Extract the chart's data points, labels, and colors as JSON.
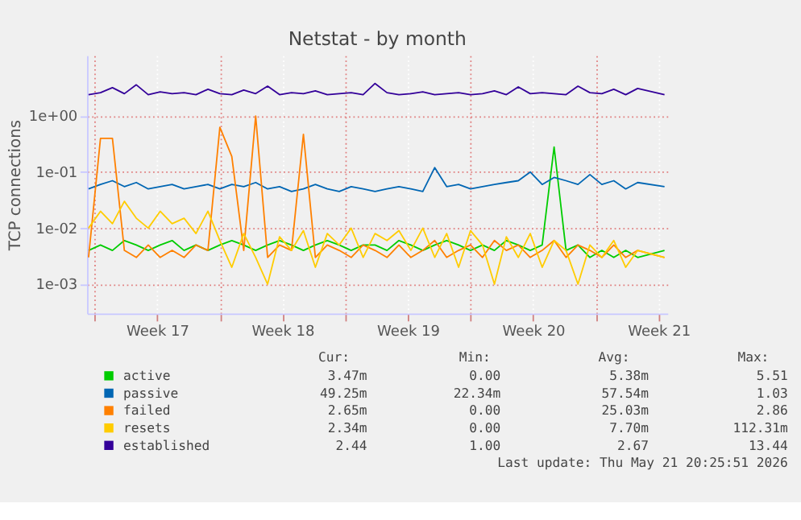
{
  "chart_data": {
    "type": "line",
    "title": "Netstat - by month",
    "ylabel": "TCP connections",
    "log": "y",
    "grid": true,
    "legend": "bottom",
    "marker": "none",
    "line_style": "solid",
    "xlim": [
      "2026-04-19T14:00",
      "2026-05-22T00:00"
    ],
    "xticks": [
      {
        "value": "2026-04-20",
        "label": null
      },
      {
        "value": "2026-04-23T12:00",
        "label": "Week 17"
      },
      {
        "value": "2026-04-27",
        "label": null
      },
      {
        "value": "2026-04-30T12:00",
        "label": "Week 18"
      },
      {
        "value": "2026-05-04",
        "label": null
      },
      {
        "value": "2026-05-07T12:00",
        "label": "Week 19"
      },
      {
        "value": "2026-05-11",
        "label": null
      },
      {
        "value": "2026-05-14T12:00",
        "label": "Week 20"
      },
      {
        "value": "2026-05-18",
        "label": null
      },
      {
        "value": "2026-05-21T12:00",
        "label": "Week 21"
      }
    ],
    "ylim": [
      0.0003,
      12
    ],
    "yticks": [
      {
        "value": 0.001,
        "label": "1e-03"
      },
      {
        "value": 0.01,
        "label": "1e-02"
      },
      {
        "value": 0.1,
        "label": "1e-01"
      },
      {
        "value": 1,
        "label": "1e+00"
      }
    ],
    "x": [
      "2026-04-19T16:00",
      "2026-04-20T08:00",
      "2026-04-21T00:00",
      "2026-04-21T16:00",
      "2026-04-22T08:00",
      "2026-04-23T00:00",
      "2026-04-23T16:00",
      "2026-04-24T08:00",
      "2026-04-25T00:00",
      "2026-04-25T16:00",
      "2026-04-26T08:00",
      "2026-04-27T00:00",
      "2026-04-27T16:00",
      "2026-04-28T08:00",
      "2026-04-29T00:00",
      "2026-04-29T16:00",
      "2026-04-30T08:00",
      "2026-05-01T00:00",
      "2026-05-01T16:00",
      "2026-05-02T08:00",
      "2026-05-03T00:00",
      "2026-05-03T16:00",
      "2026-05-04T08:00",
      "2026-05-05T00:00",
      "2026-05-05T16:00",
      "2026-05-06T08:00",
      "2026-05-07T00:00",
      "2026-05-07T16:00",
      "2026-05-08T08:00",
      "2026-05-09T00:00",
      "2026-05-09T16:00",
      "2026-05-10T08:00",
      "2026-05-11T00:00",
      "2026-05-11T16:00",
      "2026-05-12T08:00",
      "2026-05-13T00:00",
      "2026-05-13T16:00",
      "2026-05-14T08:00",
      "2026-05-15T00:00",
      "2026-05-15T16:00",
      "2026-05-16T08:00",
      "2026-05-17T00:00",
      "2026-05-17T16:00",
      "2026-05-18T08:00",
      "2026-05-19T00:00",
      "2026-05-19T16:00",
      "2026-05-20T08:00",
      "2026-05-21T20:00"
    ],
    "series": [
      {
        "name": "active",
        "color": "#00cc00",
        "values": [
          0.004,
          0.005,
          0.004,
          0.006,
          0.005,
          0.004,
          0.005,
          0.006,
          0.004,
          0.005,
          0.004,
          0.005,
          0.006,
          0.005,
          0.004,
          0.005,
          0.006,
          0.005,
          0.004,
          0.005,
          0.006,
          0.005,
          0.004,
          0.005,
          0.005,
          0.004,
          0.006,
          0.005,
          0.004,
          0.005,
          0.006,
          0.005,
          0.004,
          0.005,
          0.004,
          0.006,
          0.005,
          0.004,
          0.005,
          0.28,
          0.004,
          0.005,
          0.003,
          0.004,
          0.003,
          0.004,
          0.003,
          0.004
        ]
      },
      {
        "name": "passive",
        "color": "#0066b3",
        "values": [
          0.05,
          0.06,
          0.07,
          0.055,
          0.065,
          0.05,
          0.055,
          0.06,
          0.05,
          0.055,
          0.06,
          0.05,
          0.06,
          0.055,
          0.065,
          0.05,
          0.055,
          0.045,
          0.05,
          0.06,
          0.05,
          0.045,
          0.055,
          0.05,
          0.045,
          0.05,
          0.055,
          0.05,
          0.045,
          0.12,
          0.055,
          0.06,
          0.05,
          0.055,
          0.06,
          0.065,
          0.07,
          0.1,
          0.06,
          0.08,
          0.07,
          0.06,
          0.09,
          0.06,
          0.07,
          0.05,
          0.065,
          0.055
        ]
      },
      {
        "name": "failed",
        "color": "#ff8000",
        "values": [
          0.003,
          0.4,
          0.4,
          0.004,
          0.003,
          0.005,
          0.003,
          0.004,
          0.003,
          0.005,
          0.004,
          0.63,
          0.19,
          0.004,
          1.0,
          0.003,
          0.005,
          0.004,
          0.47,
          0.003,
          0.005,
          0.004,
          0.003,
          0.005,
          0.004,
          0.003,
          0.005,
          0.003,
          0.004,
          0.006,
          0.003,
          0.004,
          0.005,
          0.003,
          0.006,
          0.004,
          0.005,
          0.003,
          0.004,
          0.006,
          0.003,
          0.005,
          0.004,
          0.003,
          0.005,
          0.003,
          0.004,
          0.003
        ]
      },
      {
        "name": "resets",
        "color": "#ffcc00",
        "values": [
          0.01,
          0.02,
          0.012,
          0.03,
          0.015,
          0.01,
          0.02,
          0.012,
          0.015,
          0.008,
          0.02,
          0.006,
          0.002,
          0.008,
          0.003,
          0.001,
          0.007,
          0.004,
          0.009,
          0.002,
          0.008,
          0.005,
          0.01,
          0.003,
          0.008,
          0.006,
          0.009,
          0.004,
          0.01,
          0.003,
          0.008,
          0.002,
          0.009,
          0.005,
          0.001,
          0.007,
          0.003,
          0.008,
          0.002,
          0.006,
          0.004,
          0.001,
          0.005,
          0.003,
          0.006,
          0.002,
          0.004,
          0.003
        ]
      },
      {
        "name": "established",
        "color": "#330099",
        "values": [
          2.4,
          2.6,
          3.2,
          2.5,
          3.6,
          2.4,
          2.7,
          2.5,
          2.6,
          2.4,
          3.0,
          2.5,
          2.4,
          2.9,
          2.5,
          3.4,
          2.4,
          2.6,
          2.5,
          2.8,
          2.4,
          2.5,
          2.6,
          2.4,
          3.8,
          2.6,
          2.4,
          2.5,
          2.7,
          2.4,
          2.5,
          2.6,
          2.4,
          2.5,
          2.8,
          2.4,
          3.3,
          2.5,
          2.6,
          2.5,
          2.4,
          3.4,
          2.6,
          2.5,
          3.0,
          2.4,
          3.1,
          2.4
        ]
      }
    ],
    "annotations": [
      "Cur:",
      "Min:",
      "Avg:",
      "Max:",
      "3.47m",
      "0.00",
      "5.38m",
      "5.51",
      "49.25m",
      "22.34m",
      "57.54m",
      "1.03",
      "2.65m",
      "0.00",
      "25.03m",
      "2.86",
      "2.34m",
      "0.00",
      "7.70m",
      "112.31m",
      "2.44",
      "1.00",
      "2.67",
      "13.44",
      "Last update: Thu May 21 20:25:51 2026"
    ]
  }
}
